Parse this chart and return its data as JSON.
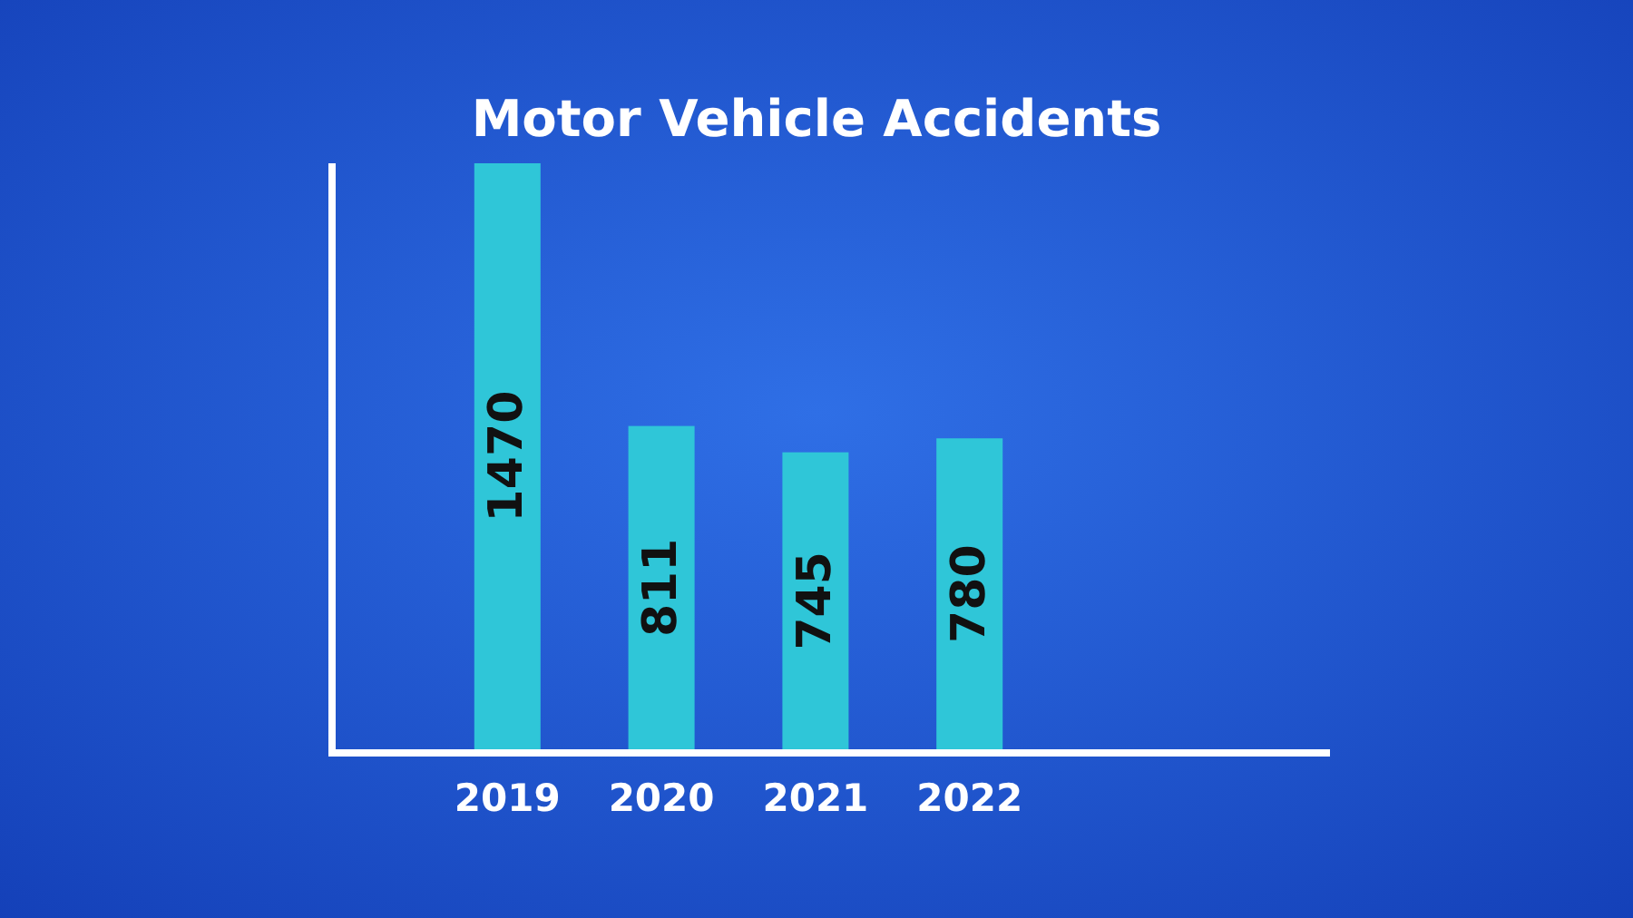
{
  "chart_data": {
    "type": "bar",
    "title": "Motor Vehicle Accidents",
    "categories": [
      "2019",
      "2020",
      "2021",
      "2022"
    ],
    "values": [
      1470,
      811,
      745,
      780
    ],
    "color": "#2fc6d8",
    "data_labels": true
  }
}
